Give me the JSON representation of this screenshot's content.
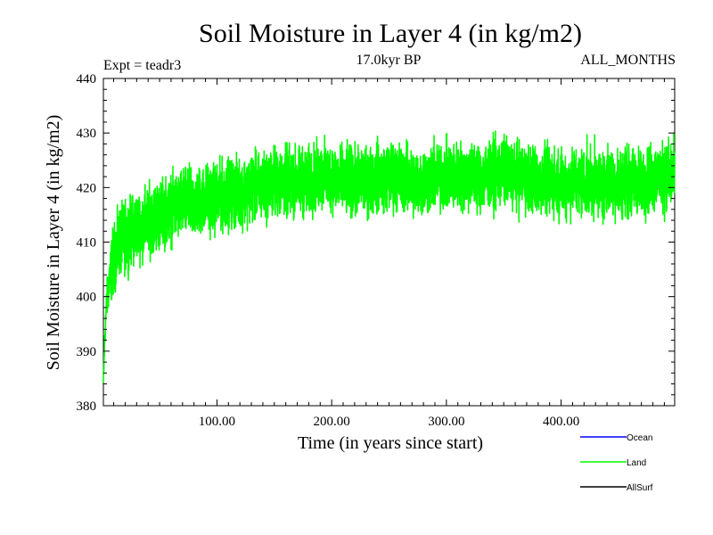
{
  "chart_data": {
    "type": "line",
    "title": "Soil Moisture in Layer 4 (in kg/m2)",
    "subtitle_left": "Expt = teadr3",
    "subtitle_center": "17.0kyr BP",
    "subtitle_right": "ALL_MONTHS",
    "xlabel": "Time (in years since start)",
    "ylabel": "Soil Moisture in Layer 4 (in kg/m2)",
    "xlim": [
      1,
      499
    ],
    "ylim": [
      380,
      440
    ],
    "x_ticks": [
      100,
      200,
      300,
      400
    ],
    "x_tick_labels": [
      "100.00",
      "200.00",
      "300.00",
      "400.00"
    ],
    "y_ticks": [
      380,
      390,
      400,
      410,
      420,
      430,
      440
    ],
    "y_tick_labels": [
      "380",
      "390",
      "400",
      "410",
      "420",
      "430",
      "440"
    ],
    "series": [
      {
        "name": "Land",
        "color": "#00ff00",
        "x": [
          1,
          2,
          3,
          4,
          5,
          6,
          7,
          8,
          9,
          10,
          12,
          15,
          20,
          25,
          30,
          35,
          40,
          50,
          60,
          70,
          80,
          90,
          100,
          110,
          120,
          130,
          140,
          150,
          160,
          170,
          180,
          190,
          200,
          210,
          220,
          230,
          240,
          250,
          260,
          270,
          280,
          290,
          300,
          310,
          320,
          330,
          340,
          350,
          360,
          370,
          380,
          390,
          400,
          410,
          420,
          430,
          440,
          450,
          460,
          470,
          480,
          490,
          499
        ],
        "values": [
          384,
          391,
          396,
          399,
          401,
          403,
          404,
          405,
          406,
          407,
          408,
          410,
          411,
          412,
          413,
          413,
          414,
          415,
          416,
          417,
          417,
          418,
          418,
          419,
          419,
          420,
          420,
          421,
          421,
          421,
          421,
          422,
          422,
          421,
          421,
          421,
          422,
          422,
          422,
          421,
          421,
          422,
          422,
          422,
          422,
          422,
          422,
          423,
          422,
          422,
          421,
          421,
          421,
          421,
          421,
          421,
          421,
          421,
          421,
          421,
          422,
          422,
          422
        ],
        "noise_range": [
          -7,
          8
        ]
      }
    ],
    "legend": [
      {
        "label": "Ocean",
        "color": "#0000ff"
      },
      {
        "label": "Land",
        "color": "#00ff00"
      },
      {
        "label": "AllSurf",
        "color": "#000000"
      }
    ],
    "legend_position": "bottom-right"
  }
}
